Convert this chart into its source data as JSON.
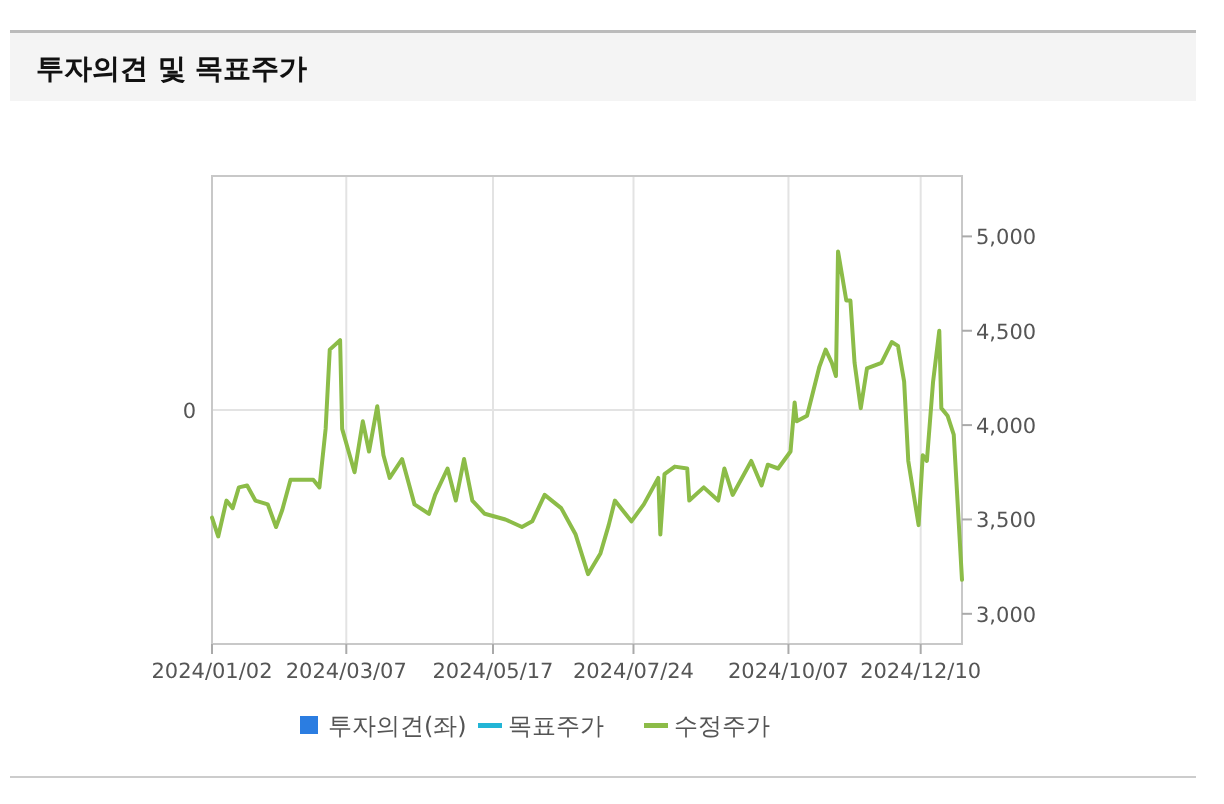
{
  "chart_data": {
    "type": "line",
    "title": "투자의견 및 목표주가",
    "xlim": [
      "2024-01-02",
      "2024-12-30"
    ],
    "xticks": [
      {
        "value": "2024-01-02",
        "label": "2024/01/02"
      },
      {
        "value": "2024-03-07",
        "label": "2024/03/07"
      },
      {
        "value": "2024-05-17",
        "label": "2024/05/17"
      },
      {
        "value": "2024-07-24",
        "label": "2024/07/24"
      },
      {
        "value": "2024-10-07",
        "label": "2024/10/07"
      },
      {
        "value": "2024-12-10",
        "label": "2024/12/10"
      }
    ],
    "annotations": [
      "0"
    ],
    "y2lim": [
      2840,
      5320
    ],
    "y2ticks": [
      {
        "value": 3000,
        "label": "3,000"
      },
      {
        "value": 3500,
        "label": "3,500"
      },
      {
        "value": 4000,
        "label": "4,000"
      },
      {
        "value": 4500,
        "label": "4,500"
      },
      {
        "value": 5000,
        "label": "5,000"
      }
    ],
    "grid": "x",
    "legend": "bottom",
    "marker": "none",
    "series": [
      {
        "name": "투자의견(좌)",
        "type": "bar",
        "color": "#2b7de1"
      },
      {
        "name": "목표주가",
        "color": "#22b5d6"
      },
      {
        "name": "수정주가",
        "axis": "y2",
        "color": "#8cbc48",
        "x": [
          "2024-01-02",
          "2024-01-05",
          "2024-01-09",
          "2024-01-12",
          "2024-01-15",
          "2024-01-19",
          "2024-01-23",
          "2024-01-29",
          "2024-02-02",
          "2024-02-05",
          "2024-02-09",
          "2024-02-20",
          "2024-02-23",
          "2024-02-26",
          "2024-02-28",
          "2024-03-04",
          "2024-03-05",
          "2024-03-11",
          "2024-03-15",
          "2024-03-18",
          "2024-03-22",
          "2024-03-25",
          "2024-03-28",
          "2024-04-03",
          "2024-04-09",
          "2024-04-16",
          "2024-04-19",
          "2024-04-25",
          "2024-04-29",
          "2024-05-03",
          "2024-05-07",
          "2024-05-13",
          "2024-05-23",
          "2024-05-31",
          "2024-06-05",
          "2024-06-11",
          "2024-06-19",
          "2024-06-26",
          "2024-07-02",
          "2024-07-08",
          "2024-07-12",
          "2024-07-15",
          "2024-07-23",
          "2024-07-29",
          "2024-08-05",
          "2024-08-06",
          "2024-08-08",
          "2024-08-13",
          "2024-08-19",
          "2024-08-20",
          "2024-08-27",
          "2024-09-03",
          "2024-09-06",
          "2024-09-10",
          "2024-09-19",
          "2024-09-24",
          "2024-09-27",
          "2024-10-02",
          "2024-10-08",
          "2024-10-10",
          "2024-10-11",
          "2024-10-16",
          "2024-10-22",
          "2024-10-25",
          "2024-10-28",
          "2024-10-30",
          "2024-10-31",
          "2024-11-04",
          "2024-11-06",
          "2024-11-08",
          "2024-11-11",
          "2024-11-14",
          "2024-11-21",
          "2024-11-26",
          "2024-11-29",
          "2024-12-02",
          "2024-12-04",
          "2024-12-09",
          "2024-12-11",
          "2024-12-13",
          "2024-12-16",
          "2024-12-19",
          "2024-12-20",
          "2024-12-23",
          "2024-12-26",
          "2024-12-30"
        ],
        "values": [
          3510,
          3410,
          3600,
          3560,
          3670,
          3680,
          3600,
          3580,
          3460,
          3550,
          3710,
          3710,
          3670,
          3980,
          4400,
          4450,
          3980,
          3750,
          4020,
          3860,
          4100,
          3840,
          3720,
          3820,
          3580,
          3530,
          3630,
          3770,
          3600,
          3820,
          3600,
          3530,
          3500,
          3460,
          3490,
          3630,
          3560,
          3420,
          3210,
          3320,
          3470,
          3600,
          3490,
          3580,
          3720,
          3420,
          3740,
          3780,
          3770,
          3600,
          3670,
          3600,
          3770,
          3630,
          3810,
          3680,
          3790,
          3770,
          3860,
          4120,
          4020,
          4050,
          4310,
          4400,
          4330,
          4260,
          4920,
          4660,
          4660,
          4330,
          4090,
          4300,
          4330,
          4440,
          4420,
          4230,
          3810,
          3470,
          3840,
          3810,
          4230,
          4500,
          4090,
          4050,
          3950,
          3180
        ]
      }
    ]
  }
}
